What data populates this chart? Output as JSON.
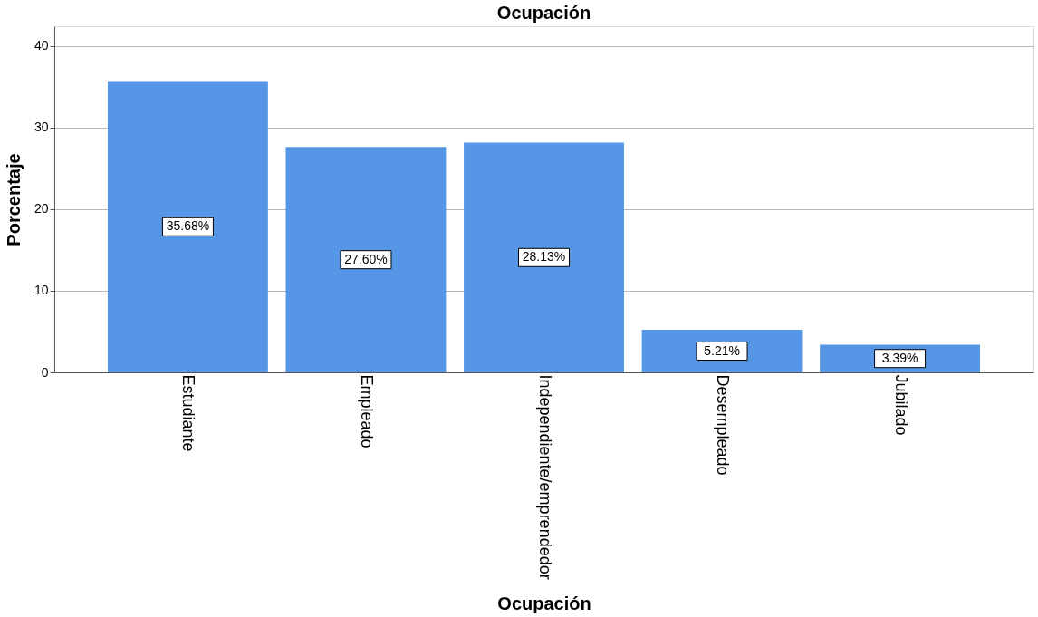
{
  "chart_data": {
    "type": "bar",
    "title": "Ocupación",
    "xlabel": "Ocupación",
    "ylabel": "Porcentaje",
    "categories": [
      "Estudiante",
      "Empleado",
      "Independiente/emprendedor",
      "Desempleado",
      "Jubilado"
    ],
    "values": [
      35.68,
      27.6,
      28.13,
      5.21,
      3.39
    ],
    "value_labels": [
      "35.68%",
      "27.60%",
      "28.13%",
      "5.21%",
      "3.39%"
    ],
    "color": "#5596e6",
    "ylim": [
      0,
      42.4
    ],
    "yticks": [
      0,
      10,
      20,
      30,
      40
    ],
    "grid": "y"
  }
}
